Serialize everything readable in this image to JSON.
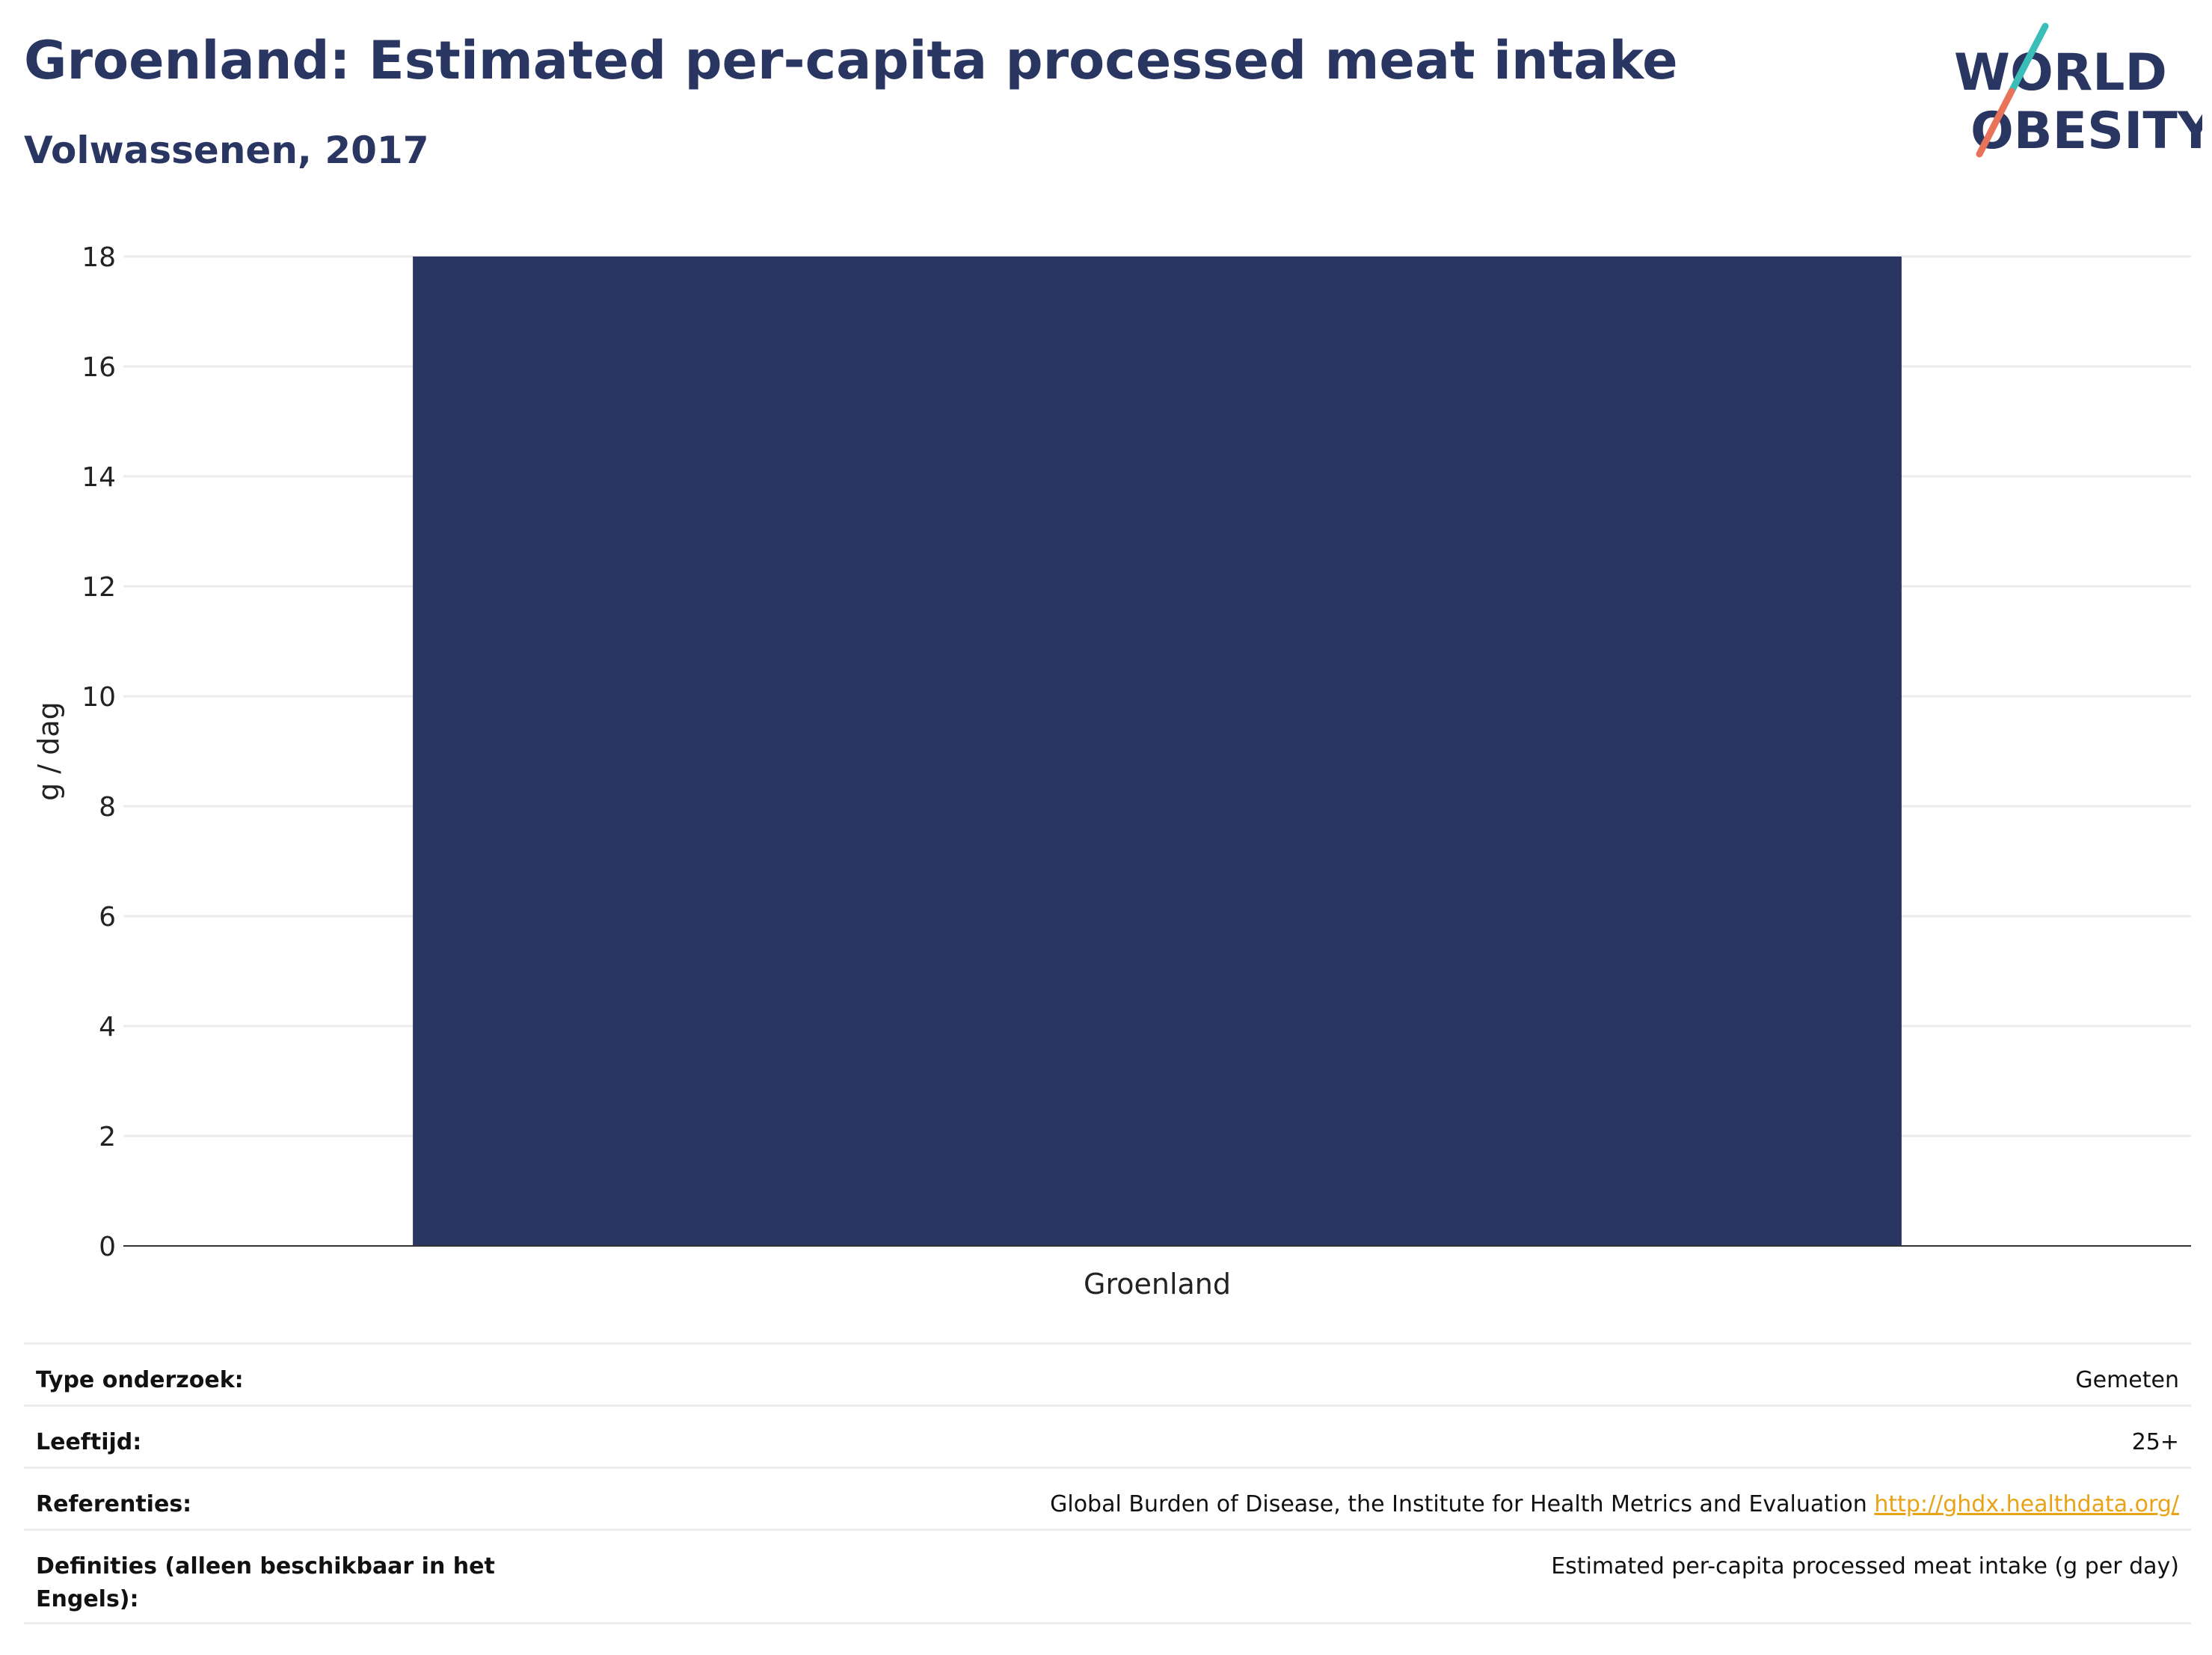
{
  "header": {
    "title": "Groenland: Estimated per-capita processed meat intake",
    "subtitle": "Volwassenen, 2017"
  },
  "logo": {
    "line1": "WORLD",
    "line2": "OBESITY",
    "colors": {
      "text": "#2a3662",
      "slash_top": "#3bbdb8",
      "slash_bottom": "#e8735a"
    }
  },
  "chart_data": {
    "type": "bar",
    "categories": [
      "Groenland"
    ],
    "values": [
      18
    ],
    "title": "Groenland: Estimated per-capita processed meat intake",
    "subtitle": "Volwassenen, 2017",
    "xlabel": "",
    "ylabel": "g / dag",
    "ylim": [
      0,
      18
    ],
    "yticks": [
      0,
      2,
      4,
      6,
      8,
      10,
      12,
      14,
      16,
      18
    ],
    "grid": true,
    "legend": "none",
    "bar_color": "#2a3662"
  },
  "info": {
    "rows": [
      {
        "key": "Type onderzoek:",
        "value": "Gemeten"
      },
      {
        "key": "Leeftijd:",
        "value": "25+"
      },
      {
        "key": "Referenties:",
        "value": "Global Burden of Disease, the Institute for Health Metrics and Evaluation",
        "link": "http://ghdx.healthdata.org/"
      },
      {
        "key": "Definities (alleen beschikbaar in het Engels):",
        "value": "Estimated per-capita processed meat intake (g per day)"
      }
    ]
  }
}
